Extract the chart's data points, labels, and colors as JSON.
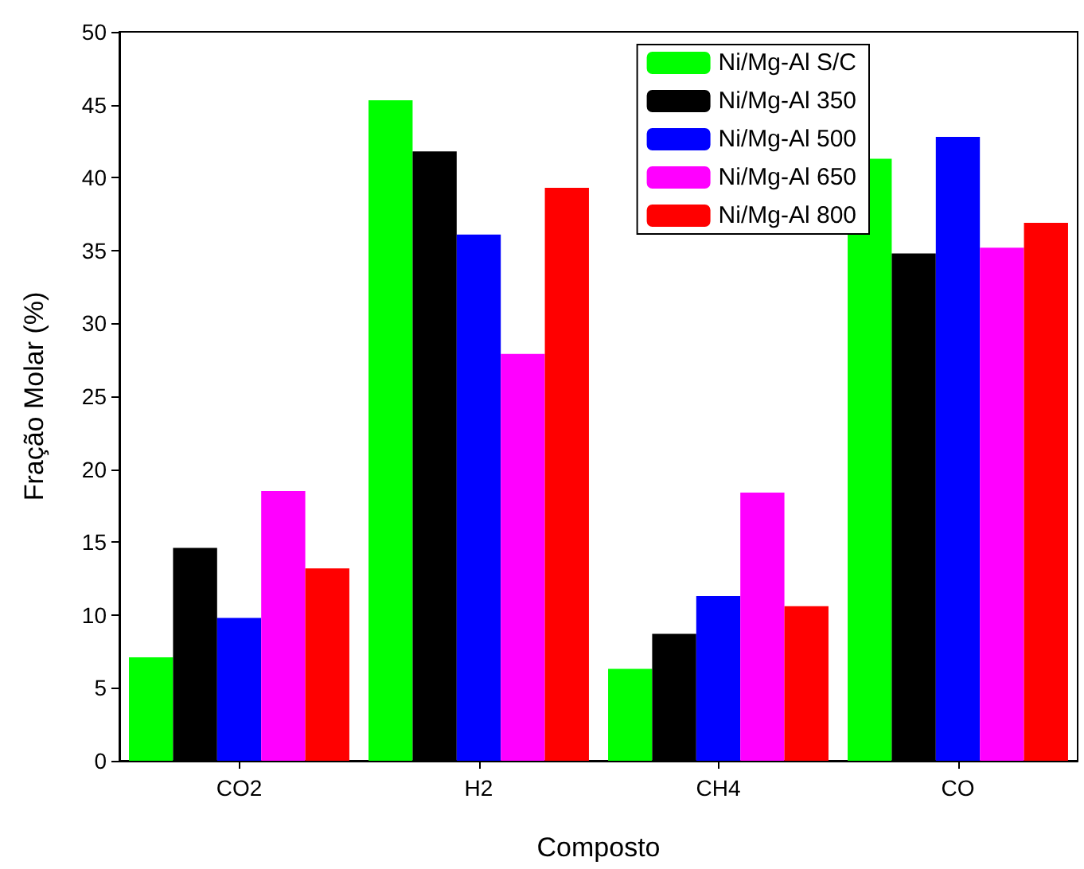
{
  "chart_data": {
    "type": "bar",
    "xlabel": "Composto",
    "ylabel": "Fração Molar (%)",
    "categories": [
      "CO2",
      "H2",
      "CH4",
      "CO"
    ],
    "series": [
      {
        "name": "Ni/Mg-Al S/C",
        "color": "#00ff00",
        "values": [
          7.1,
          45.3,
          6.3,
          41.3
        ]
      },
      {
        "name": "Ni/Mg-Al 350",
        "color": "#000000",
        "values": [
          14.6,
          41.8,
          8.7,
          34.8
        ]
      },
      {
        "name": "Ni/Mg-Al 500",
        "color": "#0000ff",
        "values": [
          9.8,
          36.1,
          11.3,
          42.8
        ]
      },
      {
        "name": "Ni/Mg-Al 650",
        "color": "#ff00ff",
        "values": [
          18.5,
          27.9,
          18.4,
          35.2
        ]
      },
      {
        "name": "Ni/Mg-Al 800",
        "color": "#ff0000",
        "values": [
          13.2,
          39.3,
          10.6,
          36.9
        ]
      }
    ],
    "ylim": [
      0,
      50
    ],
    "yticks": [
      0,
      5,
      10,
      15,
      20,
      25,
      30,
      35,
      40,
      45,
      50
    ],
    "grid": false,
    "legend": "top right"
  }
}
